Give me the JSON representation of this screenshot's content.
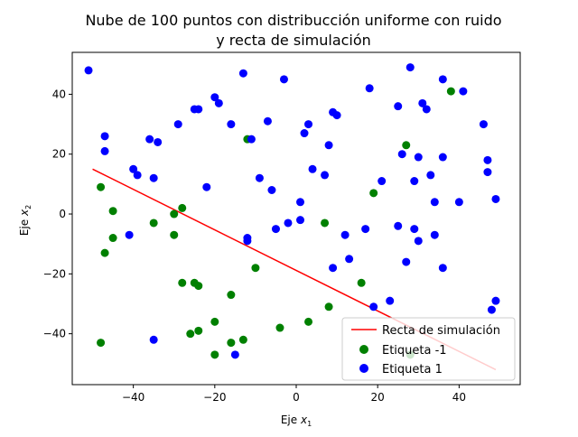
{
  "chart_data": {
    "type": "scatter",
    "title_lines": [
      "Nube de 100 puntos con distribucción uniforme con ruido",
      "y recta de simulación"
    ],
    "xlabel": "Eje",
    "xlabel_sub": "1",
    "ylabel": "Eje",
    "ylabel_sub": "2",
    "xlim": [
      -55,
      55
    ],
    "ylim": [
      -57,
      54
    ],
    "xticks": [
      -40,
      -20,
      0,
      20,
      40
    ],
    "yticks": [
      -40,
      -20,
      0,
      20,
      40
    ],
    "xtick_labels": [
      "−40",
      "−20",
      "0",
      "20",
      "40"
    ],
    "ytick_labels": [
      "−40",
      "−20",
      "0",
      "20",
      "40"
    ],
    "grid": false,
    "legend_position": "lower-right",
    "colors": {
      "line": "#ff0000",
      "neg": "#008000",
      "pos": "#0000ff"
    },
    "line": {
      "name": "Recta de simulación",
      "x": [
        -50,
        49
      ],
      "y": [
        15,
        -52
      ]
    },
    "series": [
      {
        "name": "Etiqueta -1",
        "x": [
          -48,
          -48,
          -47,
          -45,
          -45,
          -35,
          -30,
          -30,
          -28,
          -28,
          -25,
          -24,
          -24,
          -26,
          -20,
          -20,
          -16,
          -16,
          -13,
          -12,
          -10,
          -4,
          3,
          7,
          8,
          16,
          19,
          27,
          28,
          38
        ],
        "y": [
          9,
          -43,
          -13,
          1,
          -8,
          -3,
          0,
          -7,
          2,
          -23,
          -23,
          -24,
          -39,
          -40,
          -36,
          -47,
          -27,
          -43,
          -42,
          25,
          -18,
          -38,
          -36,
          -3,
          -31,
          -23,
          7,
          23,
          -47,
          41
        ]
      },
      {
        "name": "Etiqueta 1",
        "x": [
          -51,
          -47,
          -47,
          -41,
          -40,
          -39,
          -36,
          -35,
          -35,
          -34,
          -29,
          -25,
          -24,
          -22,
          -20,
          -19,
          -16,
          -15,
          -13,
          -12,
          -11,
          -9,
          -7,
          -6,
          -5,
          -3,
          -2,
          1,
          1,
          2,
          3,
          4,
          7,
          8,
          9,
          9,
          10,
          12,
          13,
          17,
          18,
          19,
          21,
          23,
          25,
          25,
          26,
          27,
          28,
          29,
          29,
          30,
          30,
          31,
          32,
          33,
          34,
          34,
          36,
          36,
          36,
          40,
          41,
          46,
          47,
          47,
          48,
          49,
          49,
          -12
        ],
        "y": [
          48,
          26,
          21,
          -7,
          15,
          13,
          25,
          -42,
          12,
          24,
          30,
          35,
          35,
          9,
          39,
          37,
          30,
          -47,
          47,
          -9,
          25,
          12,
          31,
          8,
          -5,
          45,
          -3,
          4,
          -2,
          27,
          30,
          15,
          13,
          23,
          -18,
          34,
          33,
          -7,
          -15,
          -5,
          42,
          -31,
          11,
          -29,
          36,
          -4,
          20,
          -16,
          49,
          11,
          -5,
          19,
          -9,
          37,
          35,
          13,
          4,
          -7,
          19,
          -18,
          45,
          4,
          41,
          30,
          18,
          14,
          -32,
          -29,
          5,
          -8
        ]
      }
    ]
  }
}
